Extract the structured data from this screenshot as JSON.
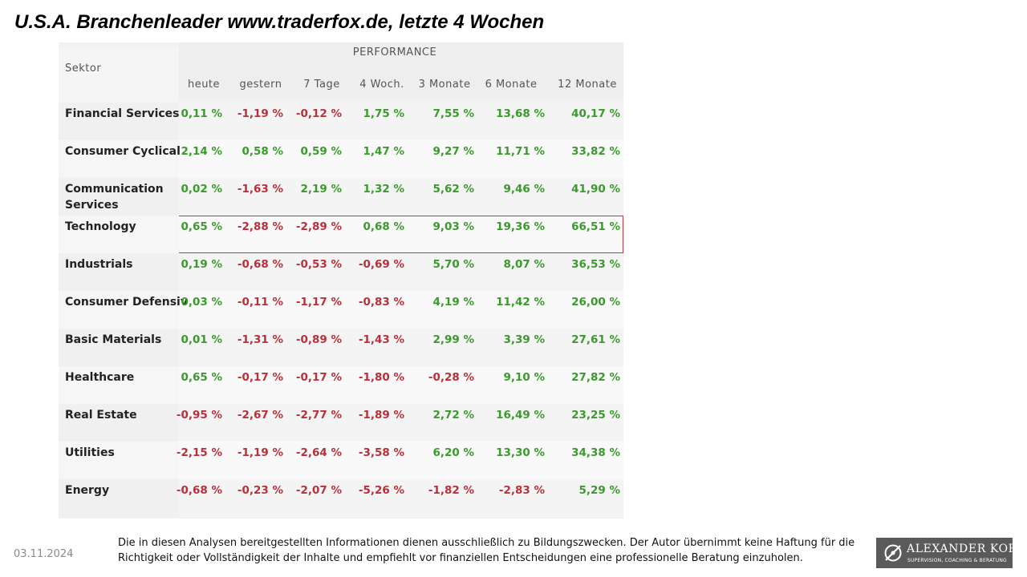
{
  "title": "U.S.A. Branchenleader www.traderfox.de, letzte 4 Wochen",
  "table": {
    "group_header": "PERFORMANCE",
    "sector_header": "Sektor",
    "columns": [
      "heute",
      "gestern",
      "7 Tage",
      "4 Woch.",
      "3 Monate",
      "6 Monate",
      "12 Monate"
    ],
    "rows": [
      {
        "sector": "Financial Services",
        "values": [
          "0,11 %",
          "-1,19 %",
          "-0,12 %",
          "1,75 %",
          "7,55 %",
          "13,68 %",
          "40,17 %"
        ]
      },
      {
        "sector": "Consumer Cyclical",
        "values": [
          "2,14 %",
          "0,58 %",
          "0,59 %",
          "1,47 %",
          "9,27 %",
          "11,71 %",
          "33,82 %"
        ]
      },
      {
        "sector": "Communication Services",
        "values": [
          "0,02 %",
          "-1,63 %",
          "2,19 %",
          "1,32 %",
          "5,62 %",
          "9,46 %",
          "41,90 %"
        ]
      },
      {
        "sector": "Technology",
        "values": [
          "0,65 %",
          "-2,88 %",
          "-2,89 %",
          "0,68 %",
          "9,03 %",
          "19,36 %",
          "66,51 %"
        ],
        "highlighted": true
      },
      {
        "sector": "Industrials",
        "values": [
          "0,19 %",
          "-0,68 %",
          "-0,53 %",
          "-0,69 %",
          "5,70 %",
          "8,07 %",
          "36,53 %"
        ]
      },
      {
        "sector": "Consumer Defensiv",
        "values": [
          "0,03 %",
          "-0,11 %",
          "-1,17 %",
          "-0,83 %",
          "4,19 %",
          "11,42 %",
          "26,00 %"
        ]
      },
      {
        "sector": "Basic Materials",
        "values": [
          "0,01 %",
          "-1,31 %",
          "-0,89 %",
          "-1,43 %",
          "2,99 %",
          "3,39 %",
          "27,61 %"
        ]
      },
      {
        "sector": "Healthcare",
        "values": [
          "0,65 %",
          "-0,17 %",
          "-0,17 %",
          "-1,80 %",
          "-0,28 %",
          "9,10 %",
          "27,82 %"
        ]
      },
      {
        "sector": "Real Estate",
        "values": [
          "-0,95 %",
          "-2,67 %",
          "-2,77 %",
          "-1,89 %",
          "2,72 %",
          "16,49 %",
          "23,25 %"
        ]
      },
      {
        "sector": "Utilities",
        "values": [
          "-2,15 %",
          "-1,19 %",
          "-2,64 %",
          "-3,58 %",
          "6,20 %",
          "13,30 %",
          "34,38 %"
        ]
      },
      {
        "sector": "Energy",
        "values": [
          "-0,68 %",
          "-0,23 %",
          "-2,07 %",
          "-5,26 %",
          "-1,82 %",
          "-2,83 %",
          "5,29 %"
        ]
      }
    ]
  },
  "footer": {
    "date": "03.11.2024",
    "disclaimer_line1": "Die in diesen Analysen bereitgestellten Informationen dienen ausschließlich zu Bildungszwecken. Der Autor übernimmt keine Haftung für die",
    "disclaimer_line2": "Richtigkeit oder Vollständigkeit der Inhalte und empfiehlt vor finanziellen Entscheidungen eine professionelle Beratung einzuholen."
  },
  "logo": {
    "name": "Alexander Korn",
    "tagline": "SUPERVISION, COACHING & BERATUNG"
  },
  "colors": {
    "positive": "#3a9a2c",
    "negative": "#b8303a",
    "highlight_border": "#c0393b",
    "logo_bg": "#5a5a5a"
  }
}
